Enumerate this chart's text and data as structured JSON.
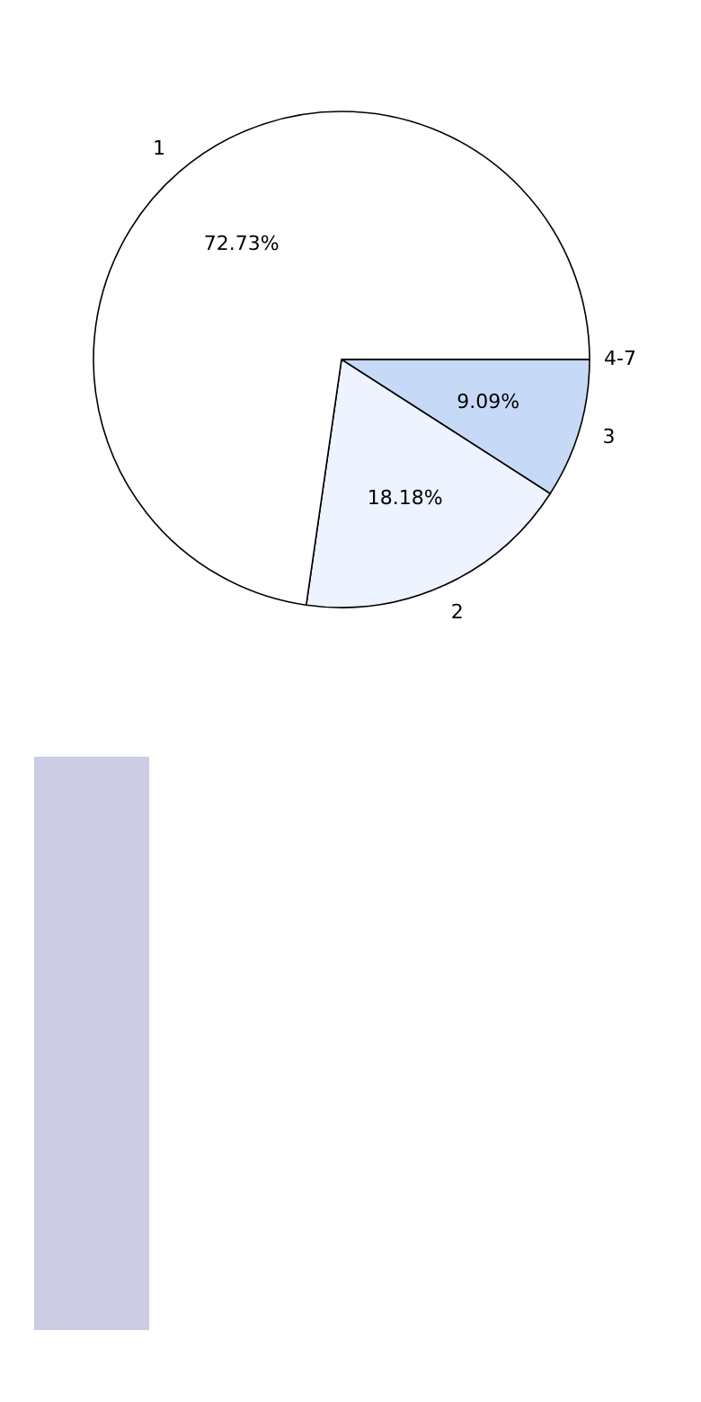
{
  "chart_data": {
    "type": "pie",
    "categories": [
      "3",
      "2",
      "1",
      "4-7"
    ],
    "values": [
      9.09,
      18.18,
      72.73,
      0
    ],
    "colors": [
      "#c6d9f7",
      "#edf3ff",
      "#ffffff",
      "#999999"
    ],
    "value_labels": [
      "9.09%",
      "18.18%",
      "72.73%",
      null
    ]
  }
}
